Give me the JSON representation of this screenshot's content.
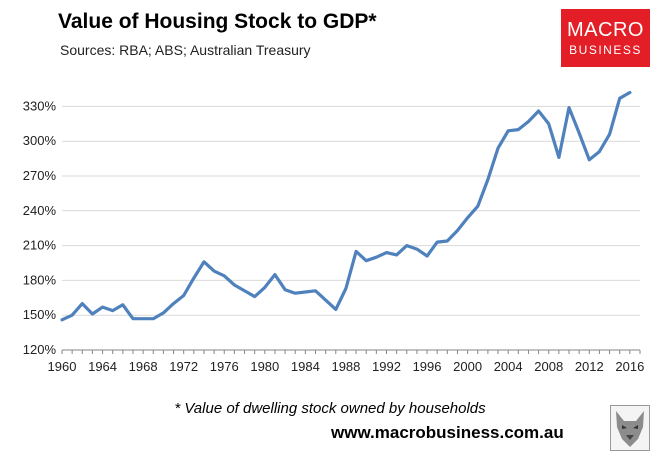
{
  "header": {
    "title": "Value of Housing Stock to GDP*",
    "subtitle": "Sources: RBA; ABS; Australian Treasury"
  },
  "logo": {
    "line1": "MACRO",
    "line2": "BUSINESS",
    "color": "#e31e26"
  },
  "footer": {
    "footnote": "* Value of dwelling stock owned by households",
    "url": "www.macrobusiness.com.au"
  },
  "chart_data": {
    "type": "line",
    "title": "Value of Housing Stock to GDP*",
    "subtitle": "Sources: RBA; ABS; Australian Treasury",
    "xlabel": "",
    "ylabel": "",
    "xlim": [
      1960,
      2017
    ],
    "ylim": [
      120,
      345
    ],
    "y_ticks": [
      120,
      150,
      180,
      210,
      240,
      270,
      300,
      330
    ],
    "y_tick_labels": [
      "120%",
      "150%",
      "180%",
      "210%",
      "240%",
      "270%",
      "300%",
      "330%"
    ],
    "x_ticks": [
      1960,
      1964,
      1968,
      1972,
      1976,
      1980,
      1984,
      1988,
      1992,
      1996,
      2000,
      2004,
      2008,
      2012,
      2016
    ],
    "x_tick_labels": [
      "1960",
      "1964",
      "1968",
      "1972",
      "1976",
      "1980",
      "1984",
      "1988",
      "1992",
      "1996",
      "2000",
      "2004",
      "2008",
      "2012",
      "2016"
    ],
    "grid": true,
    "line_color": "#4f81bd",
    "series": [
      {
        "name": "",
        "x": [
          1960,
          1961,
          1962,
          1963,
          1964,
          1965,
          1966,
          1967,
          1968,
          1969,
          1970,
          1971,
          1972,
          1973,
          1974,
          1975,
          1976,
          1977,
          1978,
          1979,
          1980,
          1981,
          1982,
          1983,
          1984,
          1985,
          1986,
          1987,
          1988,
          1989,
          1990,
          1991,
          1992,
          1993,
          1994,
          1995,
          1996,
          1997,
          1998,
          1999,
          2000,
          2001,
          2002,
          2003,
          2004,
          2005,
          2006,
          2007,
          2008,
          2009,
          2010,
          2011,
          2012,
          2013,
          2014,
          2015,
          2016
        ],
        "values": [
          146,
          150,
          160,
          151,
          157,
          154,
          159,
          147,
          147,
          147,
          152,
          160,
          167,
          182,
          196,
          188,
          184,
          176,
          171,
          166,
          174,
          185,
          172,
          169,
          170,
          171,
          163,
          155,
          173,
          205,
          197,
          200,
          204,
          202,
          210,
          207,
          201,
          213,
          214,
          223,
          234,
          244,
          267,
          294,
          309,
          310,
          317,
          326,
          315,
          286,
          329,
          307,
          284,
          291,
          306,
          337,
          342
        ]
      }
    ]
  }
}
